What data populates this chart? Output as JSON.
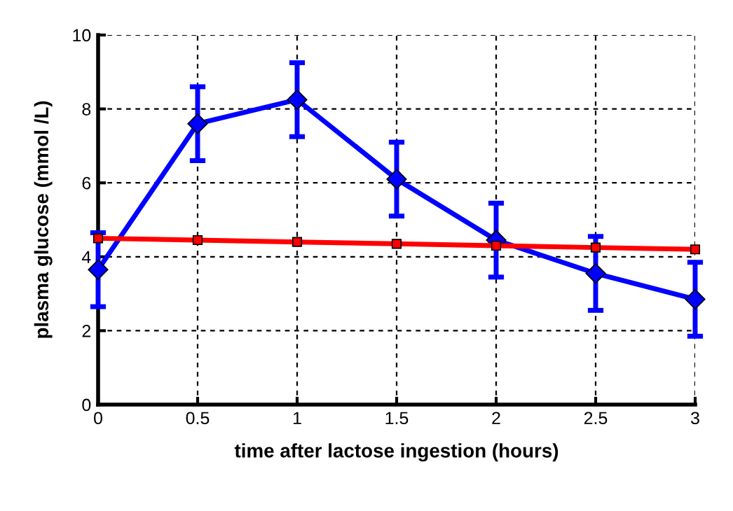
{
  "chart_data": {
    "type": "line",
    "xlabel": "time after lactose ingestion (hours)",
    "ylabel": "plasma glucose (mmol /L)",
    "x": [
      0,
      0.5,
      1,
      1.5,
      2,
      2.5,
      3
    ],
    "series": [
      {
        "color": "#0000ff",
        "marker": "diamond",
        "values": [
          3.65,
          7.6,
          8.25,
          6.1,
          4.45,
          3.55,
          2.85
        ],
        "errors": [
          1.0,
          1.0,
          1.0,
          1.0,
          1.0,
          1.0,
          1.0
        ]
      },
      {
        "color": "#ff0000",
        "marker": "square",
        "values": [
          4.5,
          4.45,
          4.4,
          4.35,
          4.3,
          4.25,
          4.2
        ]
      }
    ],
    "xlim": [
      0,
      3
    ],
    "xticks": [
      0,
      0.5,
      1,
      1.5,
      2,
      2.5,
      3
    ],
    "ylim": [
      0,
      10
    ],
    "yticks": [
      0,
      2,
      4,
      6,
      8,
      10
    ],
    "grid": true,
    "line_style": "solid"
  }
}
